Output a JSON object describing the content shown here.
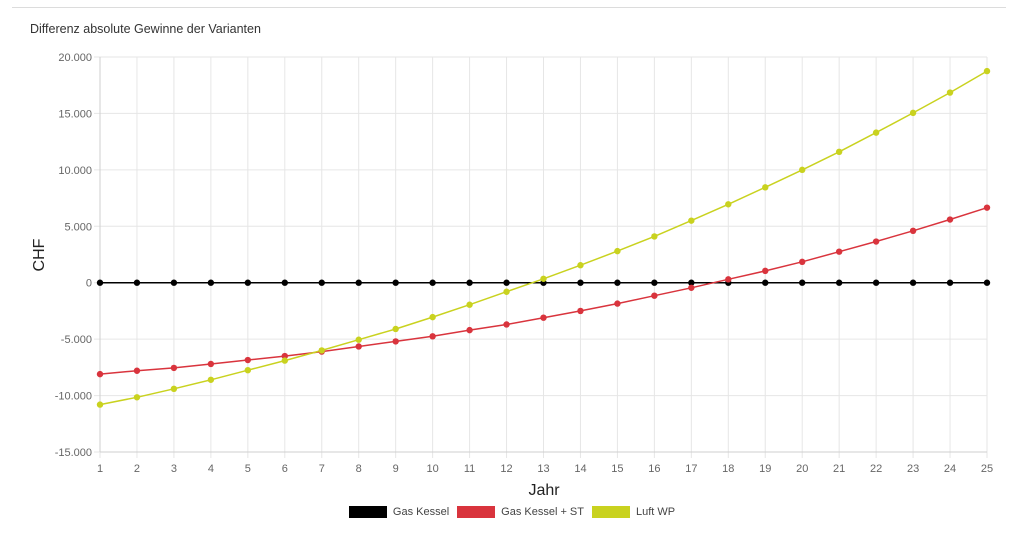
{
  "chart_data": {
    "type": "line",
    "title": "Differenz absolute Gewinne der Varianten",
    "xlabel": "Jahr",
    "ylabel": "CHF",
    "x": [
      1,
      2,
      3,
      4,
      5,
      6,
      7,
      8,
      9,
      10,
      11,
      12,
      13,
      14,
      15,
      16,
      17,
      18,
      19,
      20,
      21,
      22,
      23,
      24,
      25
    ],
    "ylim": [
      -15000,
      20000
    ],
    "yticks": [
      20000,
      15000,
      10000,
      5000,
      0,
      -5000,
      -10000,
      -15000
    ],
    "ytick_labels": [
      "20.000",
      "15.000",
      "10.000",
      "5.000",
      "0",
      "-5.000",
      "-10.000",
      "-15.000"
    ],
    "grid": true,
    "legend_position": "bottom-center",
    "series": [
      {
        "name": "Gas Kessel",
        "color": "#000000",
        "values": [
          0,
          0,
          0,
          0,
          0,
          0,
          0,
          0,
          0,
          0,
          0,
          0,
          0,
          0,
          0,
          0,
          0,
          0,
          0,
          0,
          0,
          0,
          0,
          0,
          0
        ]
      },
      {
        "name": "Gas Kessel + ST",
        "color": "#d9343d",
        "values": [
          -8100,
          -7800,
          -7550,
          -7200,
          -6850,
          -6500,
          -6100,
          -5650,
          -5200,
          -4750,
          -4200,
          -3700,
          -3100,
          -2500,
          -1850,
          -1150,
          -450,
          300,
          1050,
          1850,
          2750,
          3650,
          4600,
          5600,
          6650
        ]
      },
      {
        "name": "Luft WP",
        "color": "#c9d21f",
        "values": [
          -10800,
          -10150,
          -9400,
          -8600,
          -7750,
          -6900,
          -6000,
          -5050,
          -4100,
          -3050,
          -1950,
          -800,
          350,
          1550,
          2800,
          4100,
          5500,
          6950,
          8450,
          10000,
          11600,
          13300,
          15050,
          16850,
          18750
        ]
      }
    ]
  }
}
